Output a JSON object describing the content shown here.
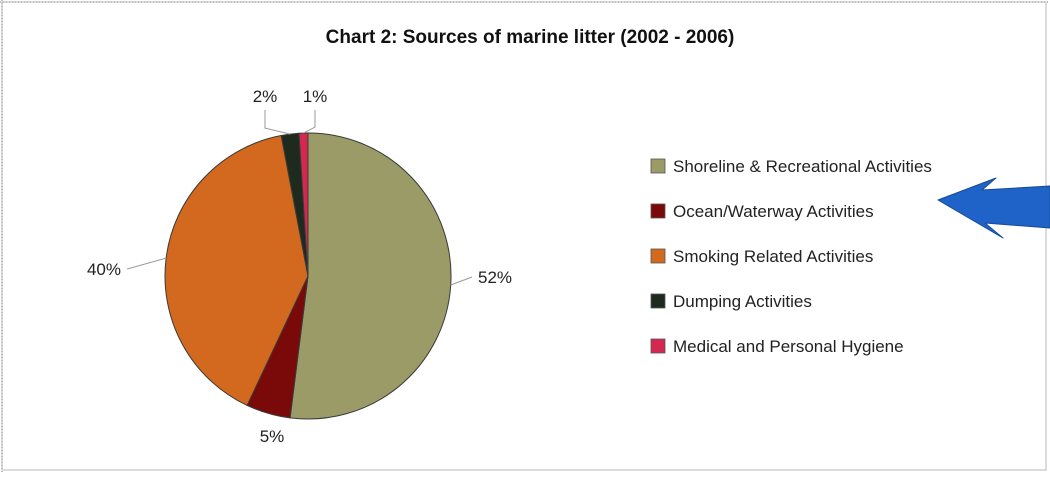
{
  "chart_data": {
    "type": "pie",
    "title": "Chart 2: Sources of marine litter (2002 - 2006)",
    "categories": [
      "Shoreline & Recreational Activities",
      "Ocean/Waterway Activities",
      "Smoking Related Activities",
      "Dumping Activities",
      "Medical and Personal Hygiene"
    ],
    "values": [
      52,
      5,
      40,
      2,
      1
    ],
    "value_labels": [
      "52%",
      "5%",
      "40%",
      "2%",
      "1%"
    ],
    "colors": [
      "#9b9b68",
      "#7a0a0a",
      "#d2691e",
      "#1e2a1e",
      "#d42850"
    ],
    "legend_position": "right",
    "start_angle": "12 o'clock",
    "direction": "clockwise"
  },
  "annotation": {
    "shape": "blue-arrow-icon",
    "color": "#1f63c8"
  },
  "frame": {
    "background": "#ffffff",
    "border_color": "#c8c8c8"
  }
}
